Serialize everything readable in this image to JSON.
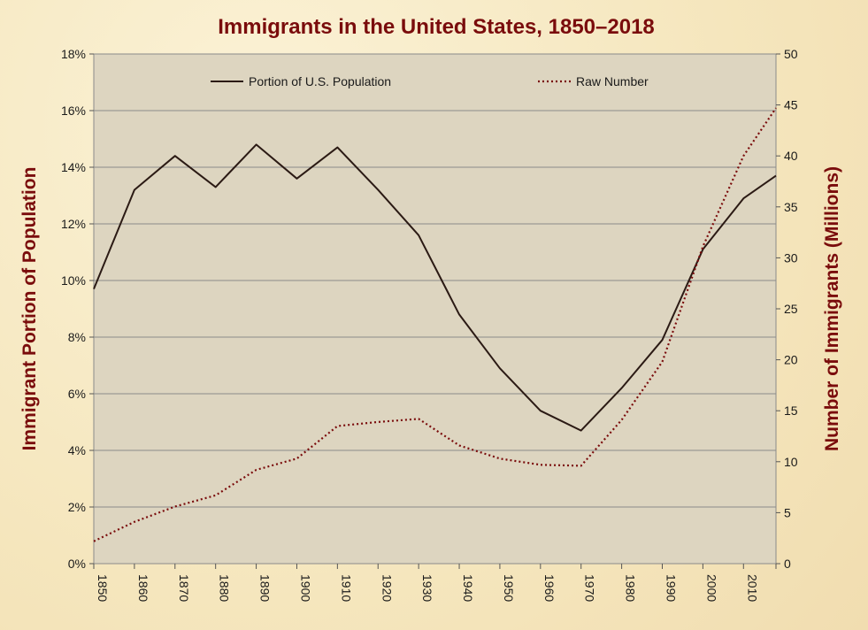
{
  "chart_data": {
    "type": "line",
    "title": "Immigrants in the United States, 1850–2018",
    "ylabel_left": "Immigrant  Portion of Population",
    "ylabel_right": "Number of Immigrants  (Millions)",
    "xlabel": "",
    "x": [
      1850,
      1860,
      1870,
      1880,
      1890,
      1900,
      1910,
      1920,
      1930,
      1940,
      1950,
      1960,
      1970,
      1980,
      1990,
      2000,
      2010,
      2018
    ],
    "x_tick_labels": [
      "1850",
      "1860",
      "1870",
      "1880",
      "1890",
      "1900",
      "1910",
      "1920",
      "1930",
      "1940",
      "1950",
      "1960",
      "1970",
      "1980",
      "1990",
      "2000",
      "2010"
    ],
    "xlim": [
      1850,
      2018
    ],
    "left_axis": {
      "ylim": [
        0,
        18
      ],
      "ticks": [
        "0%",
        "2%",
        "4%",
        "6%",
        "8%",
        "10%",
        "12%",
        "14%",
        "16%",
        "18%"
      ],
      "tick_values": [
        0,
        2,
        4,
        6,
        8,
        10,
        12,
        14,
        16,
        18
      ]
    },
    "right_axis": {
      "ylim": [
        0,
        50
      ],
      "ticks": [
        "0",
        "5",
        "10",
        "15",
        "20",
        "25",
        "30",
        "35",
        "40",
        "45",
        "50"
      ],
      "tick_values": [
        0,
        5,
        10,
        15,
        20,
        25,
        30,
        35,
        40,
        45,
        50
      ]
    },
    "grid": true,
    "legend_position": "top",
    "series": [
      {
        "name": "Portion of U.S. Population",
        "axis": "left",
        "style": "solid",
        "color": "#2b1a14",
        "values": [
          9.7,
          13.2,
          14.4,
          13.3,
          14.8,
          13.6,
          14.7,
          13.2,
          11.6,
          8.8,
          6.9,
          5.4,
          4.7,
          6.2,
          7.9,
          11.1,
          12.9,
          13.7
        ]
      },
      {
        "name": "Raw Number",
        "axis": "right",
        "style": "dotted",
        "color": "#7a0c0c",
        "values": [
          2.2,
          4.1,
          5.6,
          6.7,
          9.2,
          10.3,
          13.5,
          13.9,
          14.2,
          11.6,
          10.3,
          9.7,
          9.6,
          14.1,
          19.8,
          31.1,
          40.0,
          44.7
        ]
      }
    ]
  },
  "colors": {
    "plot_background": "#ddd5c0",
    "title_color": "#7a0c0c",
    "gridline": "#8a8a8a"
  }
}
